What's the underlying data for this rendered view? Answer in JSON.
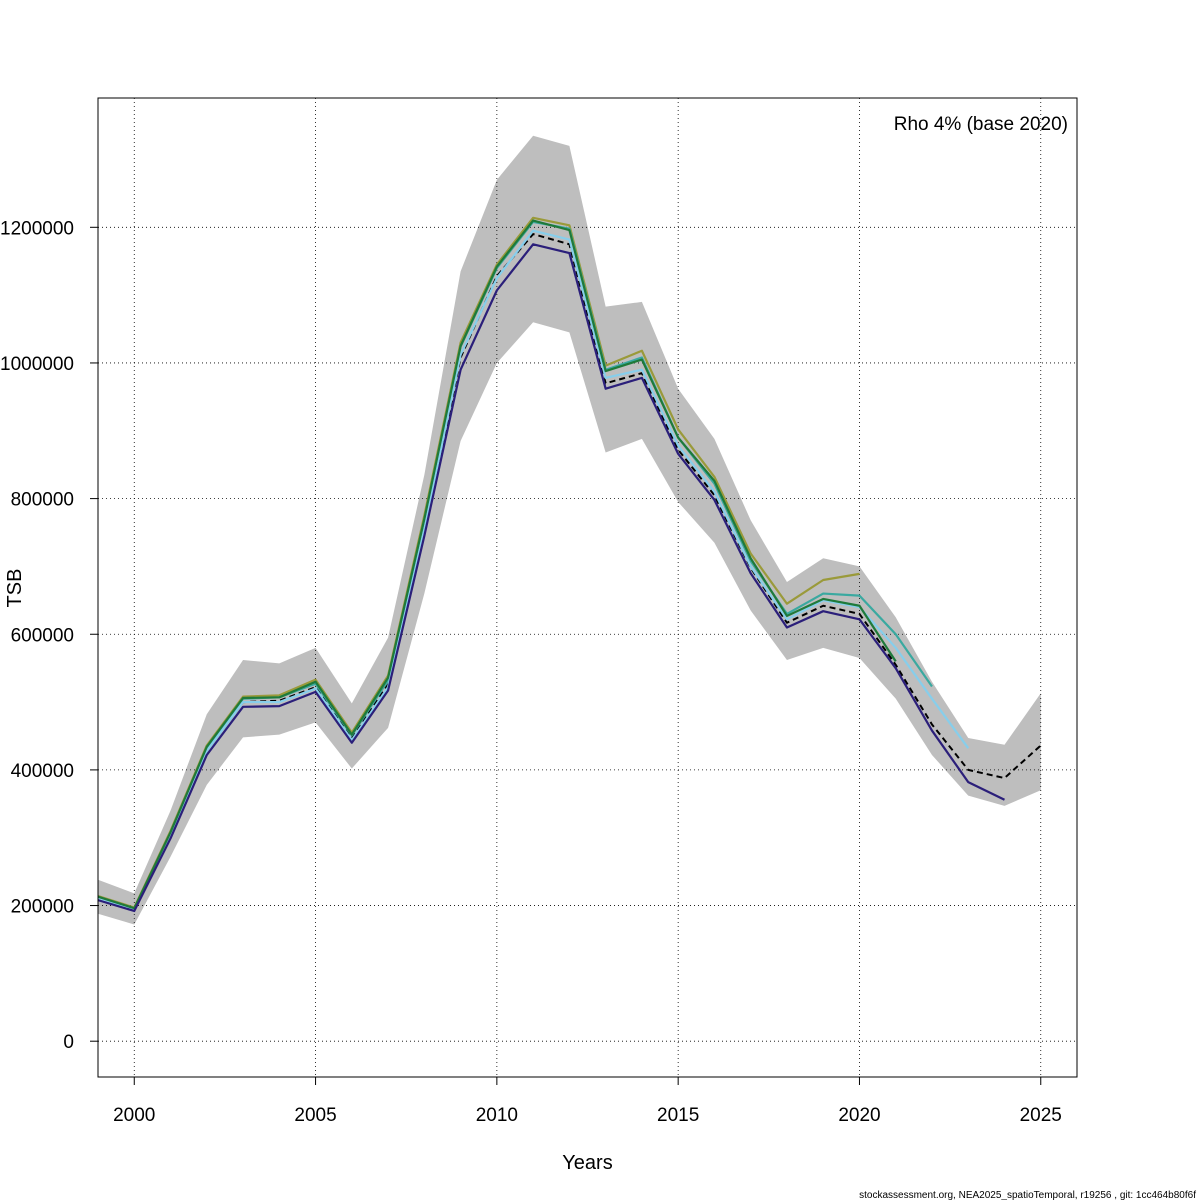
{
  "chart_data": {
    "type": "line",
    "title": "",
    "legend_text": "Rho 4% (base 2020)",
    "legend_position": "top-right",
    "xlabel": "Years",
    "ylabel": "TSB",
    "xlim": [
      1999,
      2025
    ],
    "ylim": [
      -52000,
      1388000
    ],
    "xticks": [
      2000,
      2005,
      2010,
      2015,
      2020,
      2025
    ],
    "yticks": [
      0,
      200000,
      400000,
      600000,
      800000,
      1000000,
      1200000
    ],
    "ytick_labels": [
      "0",
      "200000",
      "400000",
      "600000",
      "800000",
      "1000000",
      "1200000"
    ],
    "grid": true,
    "footer": "stockassessment.org, NEA2025_spatioTemporal, r19256 , git: 1cc464b80f6f",
    "confidence_band": {
      "color": "#bebebe",
      "x": [
        1999,
        2000,
        2001,
        2002,
        2003,
        2004,
        2005,
        2006,
        2007,
        2008,
        2009,
        2010,
        2011,
        2012,
        2013,
        2014,
        2015,
        2016,
        2017,
        2018,
        2019,
        2020,
        2021,
        2022,
        2023,
        2024,
        2025
      ],
      "lower": [
        188000,
        172000,
        272000,
        378000,
        448000,
        452000,
        470000,
        402000,
        462000,
        660000,
        885000,
        1000000,
        1060000,
        1045000,
        868000,
        888000,
        795000,
        735000,
        635000,
        562000,
        580000,
        565000,
        505000,
        422000,
        362000,
        347000,
        370000
      ],
      "upper": [
        238000,
        218000,
        340000,
        482000,
        562000,
        557000,
        580000,
        498000,
        595000,
        835000,
        1135000,
        1270000,
        1335000,
        1320000,
        1083000,
        1090000,
        962000,
        888000,
        768000,
        677000,
        712000,
        700000,
        625000,
        530000,
        447000,
        437000,
        513000
      ]
    },
    "series": [
      {
        "color": "#000000",
        "dashed": true,
        "x": [
          1999,
          2000,
          2001,
          2002,
          2003,
          2004,
          2005,
          2006,
          2007,
          2008,
          2009,
          2010,
          2011,
          2012,
          2013,
          2014,
          2015,
          2016,
          2017,
          2018,
          2019,
          2020,
          2021,
          2022,
          2023,
          2024,
          2025
        ],
        "values": [
          212000,
          195000,
          302000,
          428000,
          500000,
          502000,
          522000,
          447000,
          526000,
          748000,
          1008000,
          1128000,
          1190000,
          1175000,
          970000,
          985000,
          872000,
          805000,
          698000,
          617000,
          642000,
          630000,
          555000,
          467000,
          400000,
          388000,
          436000
        ]
      },
      {
        "color": "#9a9a3a",
        "dashed": false,
        "x": [
          1999,
          2000,
          2001,
          2002,
          2003,
          2004,
          2005,
          2006,
          2007,
          2008,
          2009,
          2010,
          2011,
          2012,
          2013,
          2014,
          2015,
          2016,
          2017,
          2018,
          2019,
          2020
        ],
        "values": [
          214000,
          197000,
          310000,
          436000,
          508000,
          510000,
          533000,
          455000,
          539000,
          775000,
          1030000,
          1145000,
          1214000,
          1203000,
          996000,
          1018000,
          902000,
          832000,
          719000,
          645000,
          680000,
          689000
        ]
      },
      {
        "color": "#3aa9a0",
        "dashed": false,
        "x": [
          1999,
          2000,
          2001,
          2002,
          2003,
          2004,
          2005,
          2006,
          2007,
          2008,
          2009,
          2010,
          2011,
          2012,
          2013,
          2014,
          2015,
          2016,
          2017,
          2018,
          2019,
          2020,
          2021,
          2022
        ],
        "values": [
          212000,
          195000,
          306000,
          432000,
          505000,
          507000,
          527000,
          451000,
          532000,
          768000,
          1024000,
          1140000,
          1208000,
          1198000,
          990000,
          1008000,
          890000,
          822000,
          708000,
          630000,
          660000,
          657000,
          600000,
          523000
        ]
      },
      {
        "color": "#87ceeb",
        "dashed": false,
        "x": [
          1999,
          2000,
          2001,
          2002,
          2003,
          2004,
          2005,
          2006,
          2007,
          2008,
          2009,
          2010,
          2011,
          2012,
          2013,
          2014,
          2015,
          2016,
          2017,
          2018,
          2019,
          2020,
          2021,
          2022,
          2023
        ],
        "values": [
          211000,
          194000,
          303000,
          428000,
          500000,
          500000,
          520000,
          444000,
          522000,
          755000,
          1012000,
          1125000,
          1195000,
          1182000,
          978000,
          990000,
          878000,
          810000,
          700000,
          622000,
          650000,
          640000,
          580000,
          505000,
          432000
        ]
      },
      {
        "color": "#1f7a3a",
        "dashed": false,
        "x": [
          1999,
          2000,
          2001,
          2002,
          2003,
          2004,
          2005,
          2006,
          2007,
          2008,
          2009,
          2010,
          2011,
          2012,
          2013,
          2014,
          2015,
          2016,
          2017,
          2018,
          2019,
          2020,
          2021
        ],
        "values": [
          213000,
          196000,
          308000,
          434000,
          506000,
          507000,
          530000,
          452000,
          536000,
          770000,
          1025000,
          1142000,
          1210000,
          1196000,
          988000,
          1005000,
          890000,
          826000,
          712000,
          627000,
          652000,
          642000,
          560000
        ]
      },
      {
        "color": "#2b1f7a",
        "dashed": false,
        "x": [
          1999,
          2000,
          2001,
          2002,
          2003,
          2004,
          2005,
          2006,
          2007,
          2008,
          2009,
          2010,
          2011,
          2012,
          2013,
          2014,
          2015,
          2016,
          2017,
          2018,
          2019,
          2020,
          2021,
          2022,
          2023,
          2024
        ],
        "values": [
          208000,
          192000,
          299000,
          422000,
          493000,
          494000,
          515000,
          440000,
          517000,
          745000,
          990000,
          1107000,
          1175000,
          1162000,
          962000,
          978000,
          866000,
          798000,
          690000,
          610000,
          634000,
          622000,
          550000,
          458000,
          382000,
          356000
        ]
      }
    ]
  }
}
